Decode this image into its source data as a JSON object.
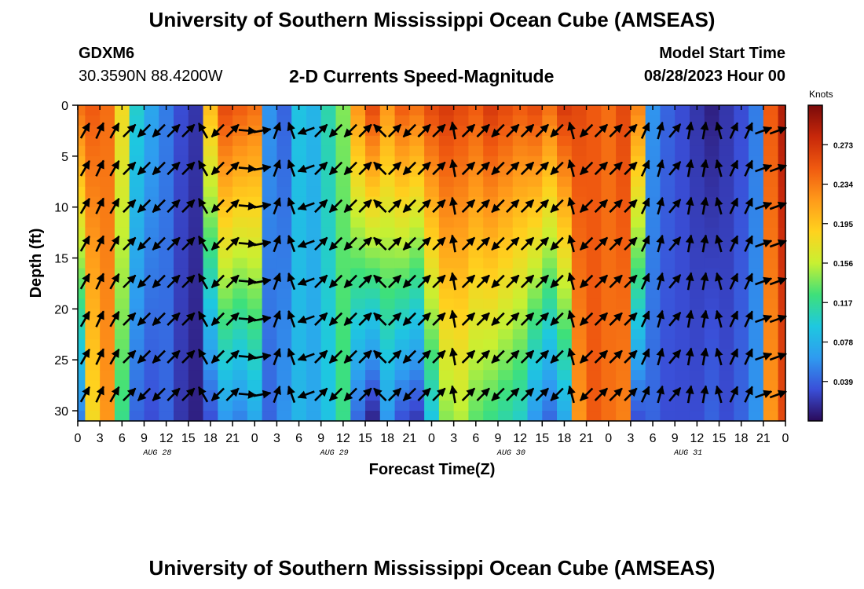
{
  "header": {
    "title": "University of Southern Mississippi Ocean Cube (AMSEAS)",
    "station": "GDXM6",
    "coords": "30.3590N  88.4200W",
    "subtitle": "2-D Currents Speed-Magnitude",
    "model_start_label": "Model Start Time",
    "model_start_value": "08/28/2023 Hour 00"
  },
  "footer": {
    "title": "University of Southern Mississippi Ocean Cube (AMSEAS)"
  },
  "colorbar": {
    "units": "Knots",
    "ticks": [
      "0.273",
      "0.234",
      "0.195",
      "0.156",
      "0.117",
      "0.078",
      "0.039"
    ],
    "tick_values": [
      0.273,
      0.234,
      0.195,
      0.156,
      0.117,
      0.078,
      0.039
    ],
    "range": [
      0,
      0.312
    ],
    "colors": [
      "#2a0a5a",
      "#3a4fd8",
      "#2f9bf0",
      "#1ec8e0",
      "#3ee07a",
      "#c8f032",
      "#ffd21e",
      "#ff9a1a",
      "#f05a10",
      "#c8280a",
      "#7a0a0a"
    ]
  },
  "chart_data": {
    "type": "heatmap",
    "title": "2-D Currents Speed-Magnitude",
    "xlabel": "Forecast Time(Z)",
    "ylabel": "Depth (ft)",
    "x_ticks": [
      "0",
      "3",
      "6",
      "9",
      "12",
      "15",
      "18",
      "21",
      "0",
      "3",
      "6",
      "9",
      "12",
      "15",
      "18",
      "21",
      "0",
      "3",
      "6",
      "9",
      "12",
      "15",
      "18",
      "21",
      "0",
      "3",
      "6",
      "9",
      "12",
      "15",
      "18",
      "21",
      "0"
    ],
    "day_labels": [
      "AUG 28",
      "AUG 29",
      "AUG 30",
      "AUG 31"
    ],
    "y_ticks": [
      "0",
      "5",
      "10",
      "15",
      "20",
      "25",
      "30"
    ],
    "y_tick_values": [
      0,
      5,
      10,
      15,
      20,
      25,
      30
    ],
    "xlim_hours": [
      0,
      96
    ],
    "ylim_ft": [
      0,
      31
    ],
    "arrow_depths_ft": [
      2.5,
      6.2,
      9.9,
      13.6,
      17.3,
      21,
      24.7,
      28.4
    ],
    "time_hours": [
      0,
      2,
      4,
      6,
      8,
      10,
      12,
      14,
      16,
      18,
      20,
      22,
      24,
      26,
      28,
      30,
      32,
      34,
      36,
      38,
      40,
      42,
      44,
      46,
      48,
      50,
      52,
      54,
      56,
      58,
      60,
      62,
      64,
      66,
      68,
      70,
      72,
      74,
      76,
      78,
      80,
      82,
      84,
      86,
      88,
      90,
      92,
      94,
      96
    ],
    "surface_speed_kn": [
      0.24,
      0.25,
      0.24,
      0.18,
      0.1,
      0.07,
      0.05,
      0.03,
      0.02,
      0.2,
      0.26,
      0.25,
      0.24,
      0.06,
      0.04,
      0.09,
      0.08,
      0.11,
      0.14,
      0.22,
      0.26,
      0.22,
      0.25,
      0.24,
      0.26,
      0.27,
      0.26,
      0.25,
      0.27,
      0.26,
      0.25,
      0.26,
      0.24,
      0.27,
      0.26,
      0.25,
      0.24,
      0.26,
      0.23,
      0.06,
      0.04,
      0.03,
      0.02,
      0.01,
      0.02,
      0.03,
      0.05,
      0.25,
      0.29
    ],
    "bottom_speed_kn": [
      0.05,
      0.18,
      0.22,
      0.12,
      0.04,
      0.03,
      0.04,
      0.02,
      0.01,
      0.03,
      0.06,
      0.05,
      0.07,
      0.04,
      0.06,
      0.08,
      0.07,
      0.09,
      0.12,
      0.04,
      0.01,
      0.06,
      0.03,
      0.02,
      0.09,
      0.14,
      0.15,
      0.13,
      0.12,
      0.11,
      0.1,
      0.06,
      0.04,
      0.07,
      0.22,
      0.25,
      0.24,
      0.23,
      0.03,
      0.04,
      0.03,
      0.03,
      0.03,
      0.04,
      0.03,
      0.04,
      0.06,
      0.22,
      0.26
    ],
    "arrow_times_hours": [
      0,
      2,
      4,
      6,
      8,
      10,
      12,
      14,
      16,
      18,
      20,
      22,
      24,
      26,
      28,
      30,
      32,
      34,
      36,
      38,
      40,
      42,
      44,
      46,
      48,
      50,
      52,
      54,
      56,
      58,
      60,
      62,
      64,
      66,
      68,
      70,
      72,
      74,
      76,
      78,
      80,
      82,
      84,
      86,
      88,
      90,
      92,
      94
    ],
    "arrow_directions_deg": [
      30,
      25,
      30,
      45,
      225,
      225,
      45,
      45,
      330,
      225,
      45,
      95,
      80,
      20,
      340,
      250,
      45,
      225,
      225,
      45,
      315,
      45,
      225,
      45,
      45,
      350,
      45,
      45,
      225,
      45,
      45,
      45,
      225,
      345,
      225,
      45,
      45,
      45,
      25,
      15,
      40,
      10,
      10,
      345,
      25,
      25,
      70,
      70
    ]
  }
}
